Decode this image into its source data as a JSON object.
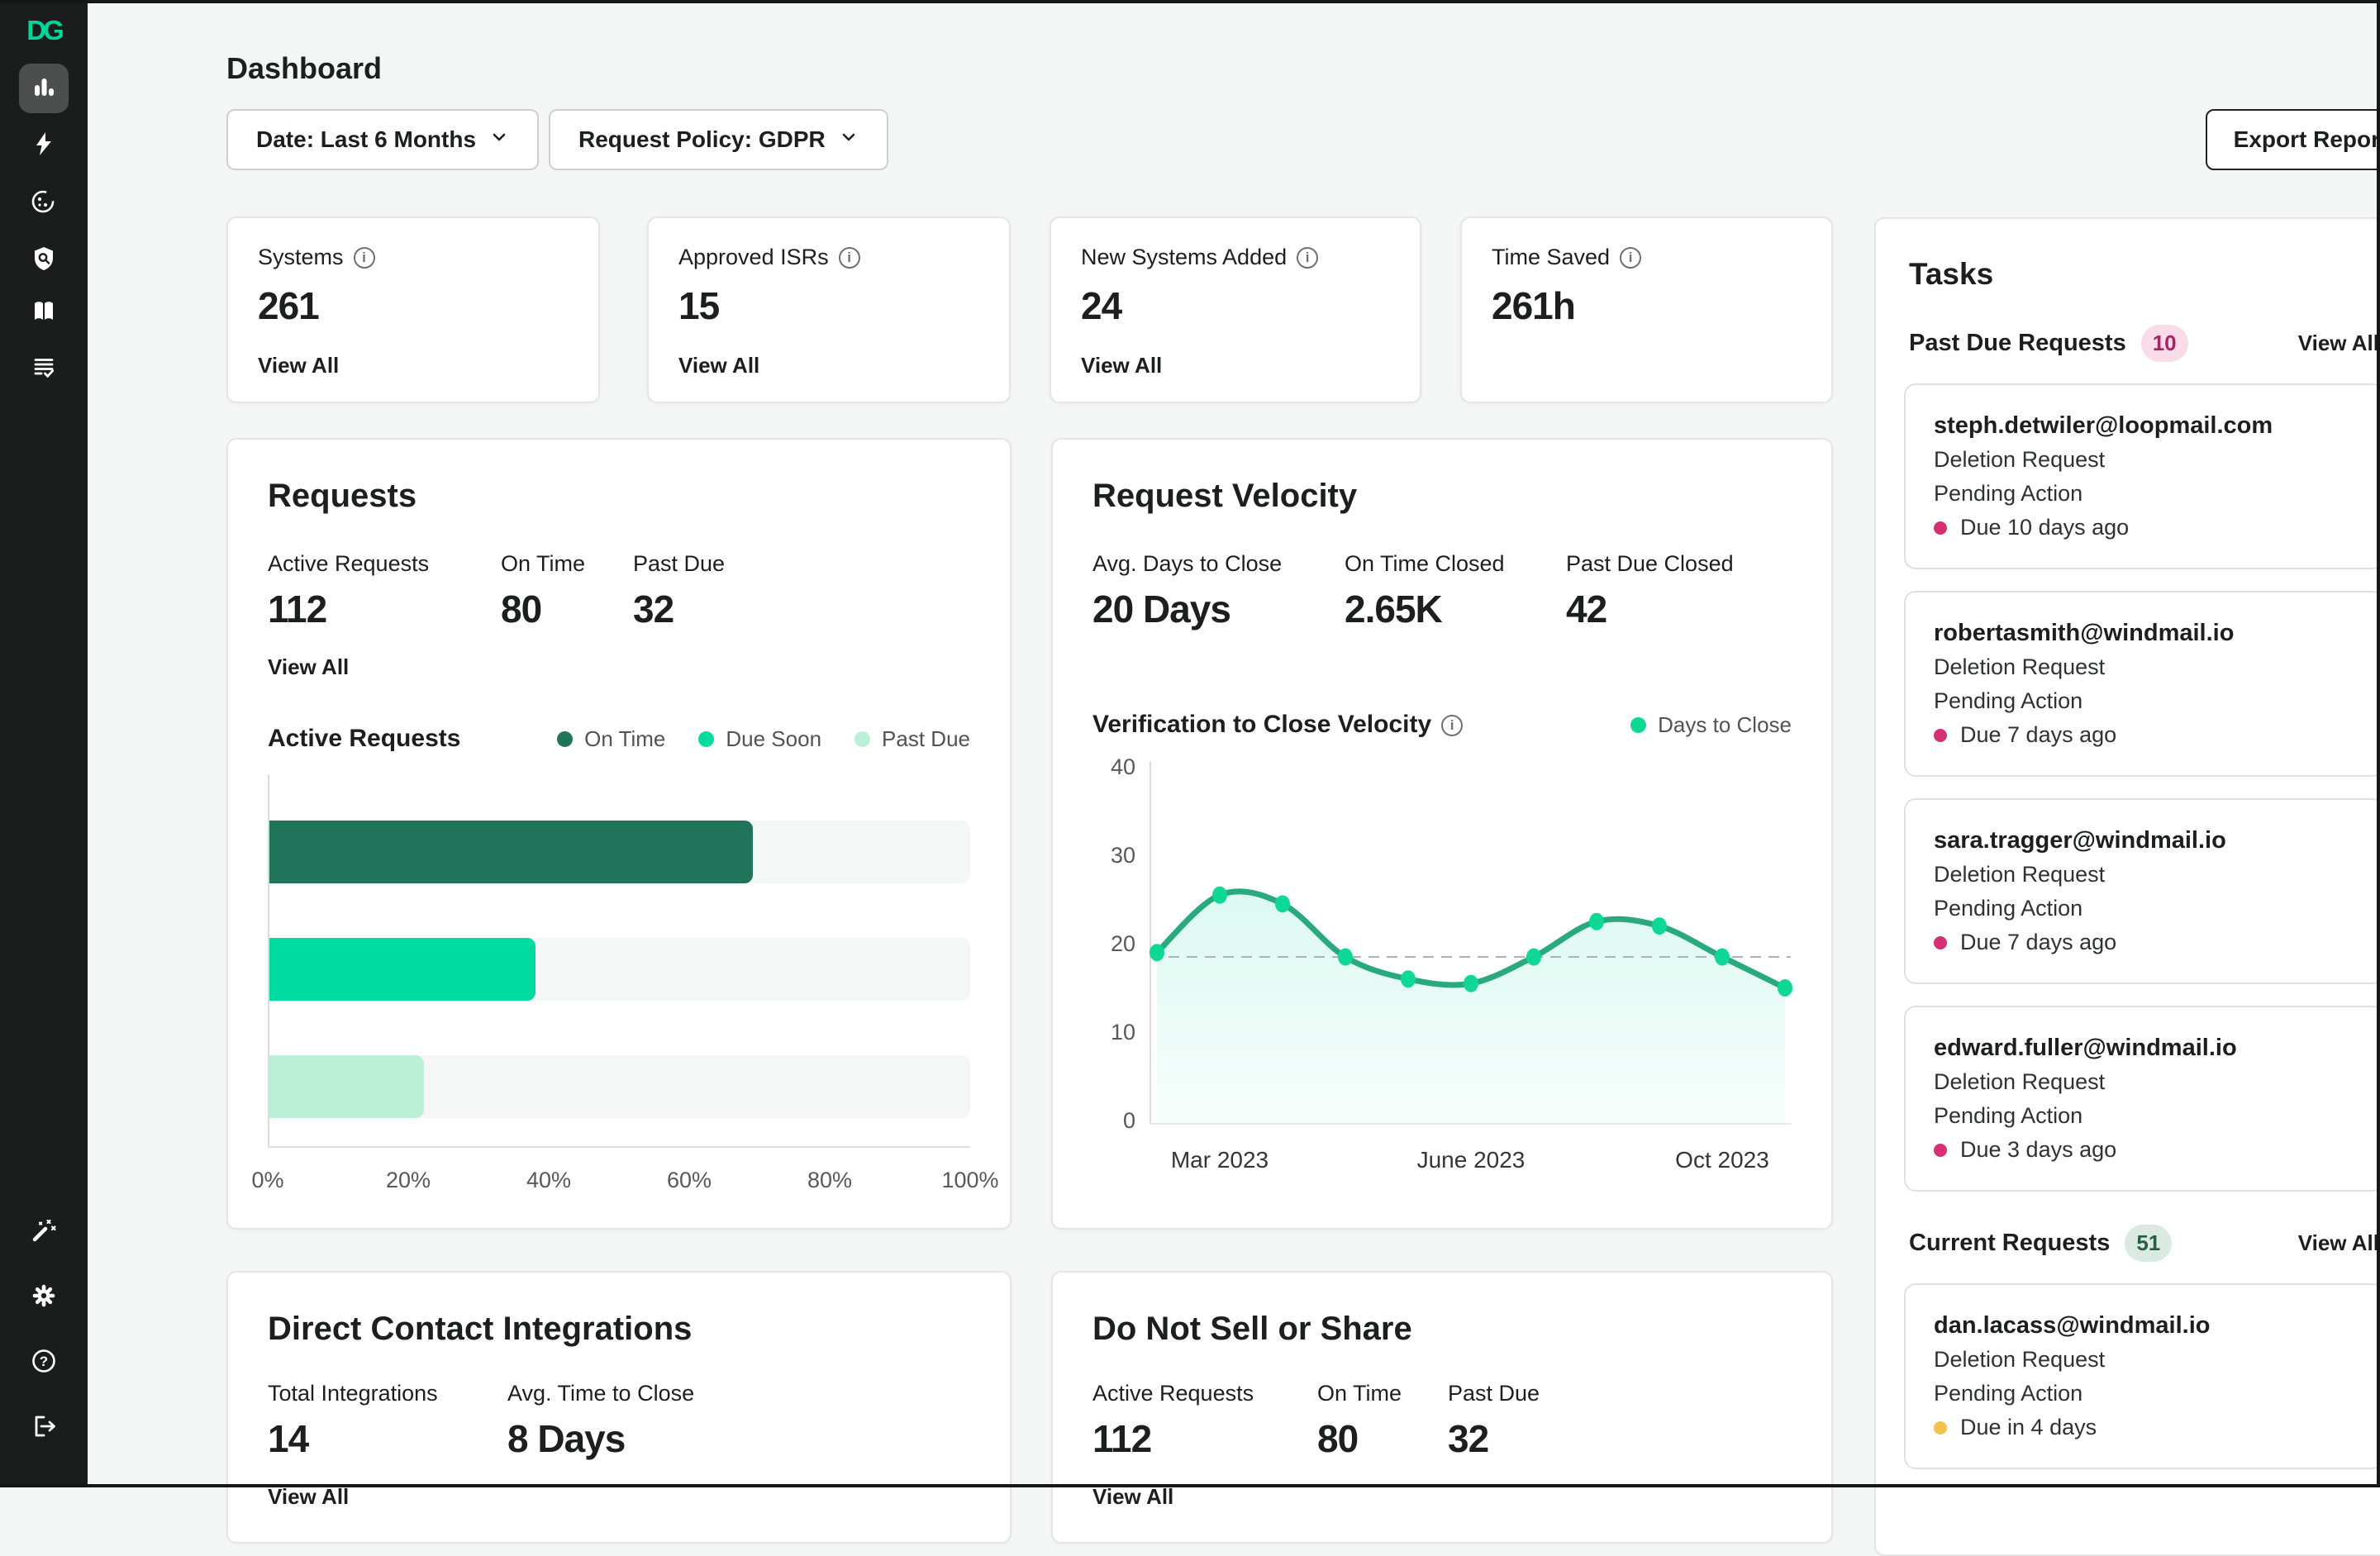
{
  "icons": {
    "info_glyph": "i"
  },
  "header": {
    "title": "Dashboard",
    "date_filter_label": "Date: Last 6 Months",
    "policy_filter_label": "Request Policy: GDPR",
    "export_button_label": "Export Report"
  },
  "stat_cards": [
    {
      "label": "Systems",
      "value": "261",
      "view_all": "View All"
    },
    {
      "label": "Approved ISRs",
      "value": "15",
      "view_all": "View All"
    },
    {
      "label": "New Systems Added",
      "value": "24",
      "view_all": "View All"
    },
    {
      "label": "Time Saved",
      "value": "261h"
    }
  ],
  "requests_card": {
    "title": "Requests",
    "stats": [
      {
        "label": "Active Requests",
        "value": "112"
      },
      {
        "label": "On Time",
        "value": "80"
      },
      {
        "label": "Past Due",
        "value": "32"
      }
    ],
    "view_all": "View All",
    "subtitle": "Active Requests"
  },
  "velocity_card": {
    "title": "Request Velocity",
    "stats": [
      {
        "label": "Avg. Days to Close",
        "value": "20 Days"
      },
      {
        "label": "On Time Closed",
        "value": "2.65K"
      },
      {
        "label": "Past Due Closed",
        "value": "42"
      }
    ],
    "subtitle": "Verification to Close Velocity",
    "legend_label": "Days to Close"
  },
  "integrations_card": {
    "title": "Direct Contact Integrations",
    "stats": [
      {
        "label": "Total Integrations",
        "value": "14"
      },
      {
        "label": "Avg. Time to Close",
        "value": "8 Days"
      }
    ],
    "view_all": "View All"
  },
  "dnss_card": {
    "title": "Do Not Sell or Share",
    "stats": [
      {
        "label": "Active Requests",
        "value": "112"
      },
      {
        "label": "On Time",
        "value": "80"
      },
      {
        "label": "Past Due",
        "value": "32"
      }
    ],
    "view_all": "View All"
  },
  "tasks_panel": {
    "title": "Tasks",
    "sections": [
      {
        "label": "Past Due Requests",
        "count": "10",
        "badge_bg": "#FADCE9",
        "badge_color": "#AD2168",
        "view_all": "View All",
        "items": [
          {
            "email": "steph.detwiler@loopmail.com",
            "type": "Deletion Request",
            "status": "Pending Action",
            "due": "Due 10 days ago",
            "dot_color": "#D62F73"
          },
          {
            "email": "robertasmith@windmail.io",
            "type": "Deletion Request",
            "status": "Pending Action",
            "due": "Due 7 days ago",
            "dot_color": "#D62F73"
          },
          {
            "email": "sara.tragger@windmail.io",
            "type": "Deletion Request",
            "status": "Pending Action",
            "due": "Due 7 days ago",
            "dot_color": "#D62F73"
          },
          {
            "email": "edward.fuller@windmail.io",
            "type": "Deletion Request",
            "status": "Pending Action",
            "due": "Due 3 days ago",
            "dot_color": "#D62F73"
          }
        ]
      },
      {
        "label": "Current Requests",
        "count": "51",
        "badge_bg": "#DBEAE0",
        "badge_color": "#265F46",
        "view_all": "View All",
        "items": [
          {
            "email": "dan.lacass@windmail.io",
            "type": "Deletion Request",
            "status": "Pending Action",
            "due": "Due in 4 days",
            "dot_color": "#F2C14E"
          }
        ]
      }
    ]
  },
  "chart_data": [
    {
      "type": "bar",
      "orientation": "horizontal",
      "title": "Active Requests",
      "categories": [
        "On Time",
        "Due Soon",
        "Past Due"
      ],
      "values": [
        69,
        38,
        22
      ],
      "unit": "%",
      "xlim": [
        0,
        100
      ],
      "x_tick_labels": [
        "0%",
        "20%",
        "40%",
        "60%",
        "80%",
        "100%"
      ],
      "colors": [
        "#20745A",
        "#00DCA0",
        "#BCEFD8"
      ],
      "track_color": "#F4F7F6",
      "legend": [
        "On Time",
        "Due Soon",
        "Past Due"
      ],
      "legend_position": "top-right"
    },
    {
      "type": "line",
      "title": "Verification to Close Velocity",
      "series": [
        {
          "name": "Days to Close",
          "values": [
            19,
            25.5,
            24.5,
            18.5,
            16,
            15.5,
            18.5,
            22.5,
            22,
            18.5,
            15
          ]
        }
      ],
      "ylim": [
        0,
        40
      ],
      "yticks": [
        0,
        10,
        20,
        30,
        40
      ],
      "x_tick_labels": [
        {
          "label": "Mar 2023",
          "index": 1
        },
        {
          "label": "June 2023",
          "index": 5
        },
        {
          "label": "Oct 2023",
          "index": 9
        }
      ],
      "reference_line": 18.5,
      "line_color": "#2BA97E",
      "point_color": "#0FD795",
      "fill_top": "rgba(0,214,155,0.14)",
      "fill_bottom": "rgba(0,214,155,0.03)",
      "smooth": true,
      "grid": false
    }
  ],
  "colors": {
    "accent_green": "#00D69B",
    "sidebar_bg": "#1B1D1C",
    "page_bg": "#F4F6F5",
    "past_due_dot": "#D62F73",
    "due_soon_dot": "#F2C14E"
  }
}
